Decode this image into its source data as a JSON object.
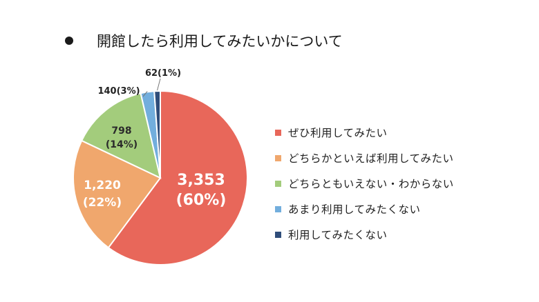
{
  "chart_data": {
    "type": "pie",
    "title": "開館したら利用してみたいかについて",
    "categories": [
      "ぜひ利用してみたい",
      "どちらかといえば利用してみたい",
      "どちらともいえない・わからない",
      "あまり利用してみたくない",
      "利用してみたくない"
    ],
    "values": [
      3353,
      1220,
      798,
      140,
      62
    ],
    "value_labels": [
      "3,353",
      "1,220",
      "798",
      "140",
      "62"
    ],
    "percent_labels": [
      "(60%)",
      "(22%)",
      "(14%)",
      "(3%)",
      "(1%)"
    ],
    "colors": [
      "#e8675a",
      "#f0a76d",
      "#a3cc7c",
      "#72aedd",
      "#2f4d7a"
    ],
    "legend_position": "right",
    "start_angle": "12 o'clock, clockwise"
  }
}
